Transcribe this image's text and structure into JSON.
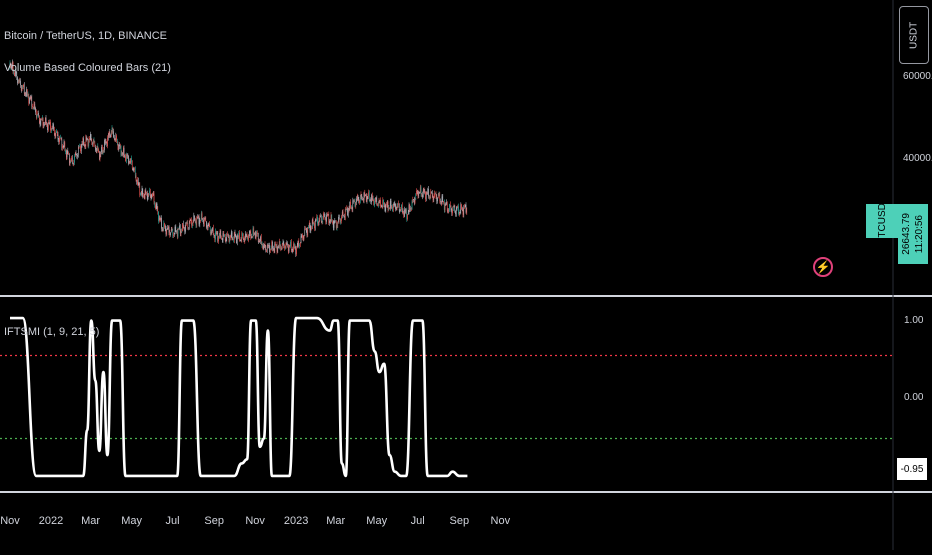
{
  "header": {
    "symbol_line": "Bitcoin / TetherUS, 1D, BINANCE",
    "indicator_line": "Volume Based Coloured Bars (21)",
    "quote_button": "USDT"
  },
  "price_panel": {
    "ticks": [
      "60000.00",
      "40000.00"
    ],
    "ticker_label": "BTCUSDT",
    "last_price": "26643.79",
    "countdown": "11:20:56",
    "colors": {
      "up": "#26a69a",
      "down": "#ef5350",
      "neutral": "#b2b5be",
      "label_bg": "#4dd0b8"
    }
  },
  "indicator_panel": {
    "title": "IFTSMI (1, 9, 21, 5)",
    "ticks": [
      "1.00",
      "0.00"
    ],
    "last_value": "-0.95",
    "upper_level_color": "#f23645",
    "lower_level_color": "#4caf50",
    "line_color": "#ffffff"
  },
  "time_axis": [
    "Nov",
    "2022",
    "Mar",
    "May",
    "Jul",
    "Sep",
    "Nov",
    "2023",
    "Mar",
    "May",
    "Jul",
    "Sep",
    "Nov"
  ],
  "chart_data": [
    {
      "type": "line",
      "title": "Bitcoin / TetherUS, 1D, BINANCE",
      "ylim": [
        18000,
        68000
      ],
      "x": [
        "2021-11-01",
        "2021-11-15",
        "2021-12-01",
        "2021-12-15",
        "2022-01-01",
        "2022-01-15",
        "2022-02-01",
        "2022-02-15",
        "2022-03-01",
        "2022-03-15",
        "2022-04-01",
        "2022-04-15",
        "2022-05-01",
        "2022-05-15",
        "2022-06-01",
        "2022-06-15",
        "2022-07-01",
        "2022-07-15",
        "2022-08-01",
        "2022-08-15",
        "2022-09-01",
        "2022-09-15",
        "2022-10-01",
        "2022-10-15",
        "2022-11-01",
        "2022-11-15",
        "2022-12-01",
        "2022-12-15",
        "2023-01-01",
        "2023-01-15",
        "2023-02-01",
        "2023-02-15",
        "2023-03-01",
        "2023-03-15",
        "2023-04-01",
        "2023-04-15",
        "2023-05-01",
        "2023-05-15",
        "2023-06-01",
        "2023-06-15",
        "2023-07-01",
        "2023-07-15",
        "2023-08-01",
        "2023-08-15",
        "2023-09-01",
        "2023-09-13"
      ],
      "series": [
        {
          "values": [
            62000,
            57000,
            53000,
            48000,
            46500,
            43000,
            37500,
            42000,
            43500,
            39500,
            45500,
            40500,
            37500,
            30000,
            29800,
            22000,
            20500,
            21500,
            23500,
            24000,
            20000,
            19500,
            19500,
            19300,
            20500,
            16800,
            17000,
            17500,
            16600,
            21000,
            23500,
            24500,
            22500,
            25500,
            28500,
            29500,
            28000,
            27000,
            27000,
            25000,
            30500,
            30000,
            29200,
            26500,
            26000,
            26643.79
          ]
        }
      ],
      "last_value": 26643.79
    },
    {
      "type": "line",
      "title": "IFTSMI (1, 9, 21, 5)",
      "ylim": [
        -1.15,
        1.15
      ],
      "levels": [
        0.5,
        -0.5
      ],
      "x": [
        "2021-11-01",
        "2021-11-20",
        "2021-12-10",
        "2021-12-20",
        "2022-01-01",
        "2022-01-20",
        "2022-01-28",
        "2022-02-05",
        "2022-02-12",
        "2022-02-18",
        "2022-02-24",
        "2022-03-02",
        "2022-03-08",
        "2022-03-14",
        "2022-03-20",
        "2022-03-26",
        "2022-04-02",
        "2022-04-08",
        "2022-04-14",
        "2022-04-22",
        "2022-05-10",
        "2022-06-01",
        "2022-06-15",
        "2022-07-01",
        "2022-07-08",
        "2022-07-15",
        "2022-07-22",
        "2022-08-01",
        "2022-08-12",
        "2022-08-20",
        "2022-09-01",
        "2022-10-01",
        "2022-10-12",
        "2022-10-20",
        "2022-10-26",
        "2022-11-02",
        "2022-11-08",
        "2022-11-14",
        "2022-11-20",
        "2022-11-26",
        "2022-12-02",
        "2022-12-08",
        "2022-12-15",
        "2022-12-22",
        "2023-01-01",
        "2023-01-08",
        "2023-01-14",
        "2023-02-01",
        "2023-02-20",
        "2023-02-26",
        "2023-03-04",
        "2023-03-10",
        "2023-03-16",
        "2023-03-22",
        "2023-04-01",
        "2023-04-10",
        "2023-04-20",
        "2023-04-28",
        "2023-05-05",
        "2023-05-12",
        "2023-05-20",
        "2023-05-28",
        "2023-06-06",
        "2023-06-14",
        "2023-06-24",
        "2023-07-01",
        "2023-07-08",
        "2023-07-16",
        "2023-07-24",
        "2023-08-01",
        "2023-08-14",
        "2023-08-22",
        "2023-09-01",
        "2023-09-13"
      ],
      "series": [
        {
          "values": [
            0.95,
            0.95,
            -0.95,
            -0.95,
            -0.95,
            -0.95,
            -0.95,
            -0.95,
            -0.95,
            -0.95,
            -0.4,
            0.92,
            0.2,
            -0.65,
            0.3,
            -0.7,
            0.92,
            0.92,
            0.92,
            -0.95,
            -0.95,
            -0.95,
            -0.95,
            -0.95,
            -0.95,
            0.92,
            0.92,
            0.92,
            -0.95,
            -0.95,
            -0.95,
            -0.95,
            -0.8,
            -0.75,
            0.92,
            0.92,
            -0.6,
            -0.5,
            0.8,
            -0.95,
            -0.95,
            -0.95,
            -0.95,
            -0.95,
            0.95,
            0.95,
            0.95,
            0.95,
            0.8,
            0.92,
            0.92,
            -0.8,
            -0.95,
            0.92,
            0.92,
            0.92,
            0.92,
            0.55,
            0.3,
            0.4,
            -0.7,
            -0.9,
            -0.95,
            -0.95,
            0.92,
            0.92,
            0.92,
            -0.95,
            -0.95,
            -0.95,
            -0.95,
            -0.9,
            -0.95,
            -0.95
          ]
        }
      ],
      "last_value": -0.95
    }
  ]
}
